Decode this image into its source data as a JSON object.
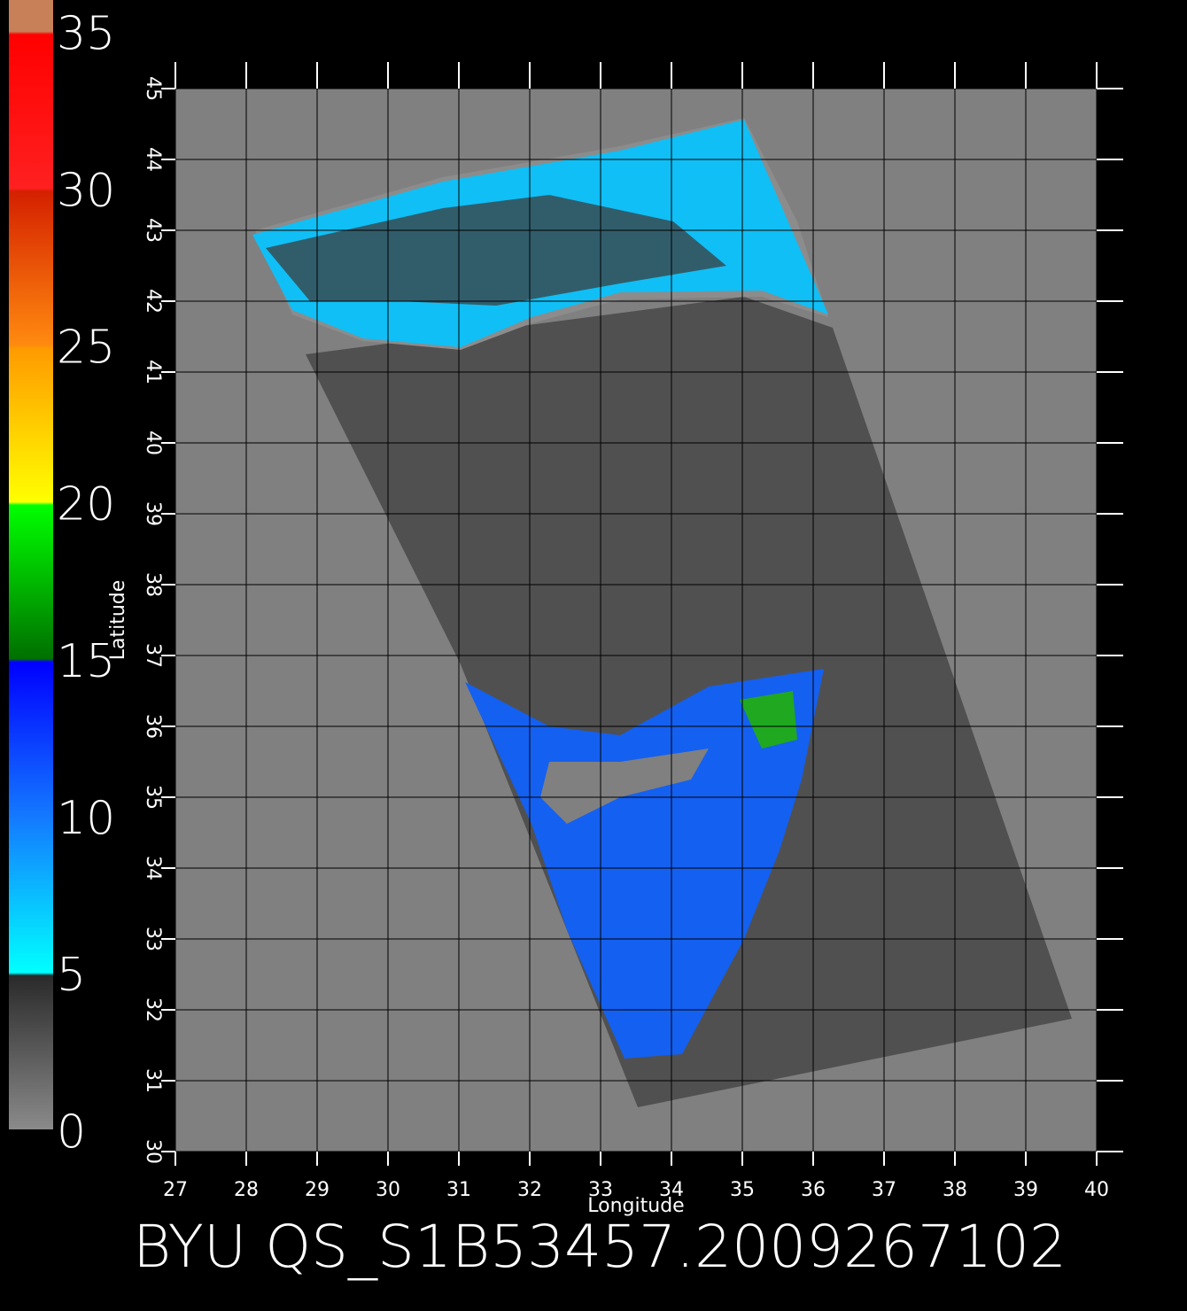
{
  "chart_data": {
    "type": "map",
    "title": "BYU  QS_S1B53457.2009267102",
    "xlabel": "Longitude",
    "ylabel": "Latitude",
    "xlim": [
      27,
      40
    ],
    "ylim": [
      30,
      45
    ],
    "xticks": [
      27,
      28,
      29,
      30,
      31,
      32,
      33,
      34,
      35,
      36,
      37,
      38,
      39,
      40
    ],
    "yticks": [
      30,
      31,
      32,
      33,
      34,
      35,
      36,
      37,
      38,
      39,
      40,
      41,
      42,
      43,
      44,
      45
    ],
    "grid": true,
    "colorbar": {
      "lim": [
        0,
        36
      ],
      "ticks": [
        0,
        5,
        10,
        15,
        20,
        25,
        30,
        35
      ],
      "stops": [
        {
          "value": 0,
          "color": "#8a8a8a"
        },
        {
          "value": 4.9,
          "color": "#2a2a2a"
        },
        {
          "value": 5,
          "color": "#00ffff"
        },
        {
          "value": 10,
          "color": "#1478ff"
        },
        {
          "value": 14.9,
          "color": "#0000ff"
        },
        {
          "value": 15,
          "color": "#007000"
        },
        {
          "value": 19.9,
          "color": "#00ff00"
        },
        {
          "value": 20,
          "color": "#ffff00"
        },
        {
          "value": 24.9,
          "color": "#ff9a00"
        },
        {
          "value": 25,
          "color": "#ff8a10"
        },
        {
          "value": 29.9,
          "color": "#d42000"
        },
        {
          "value": 30,
          "color": "#ff2020"
        },
        {
          "value": 34.9,
          "color": "#ff0000"
        },
        {
          "value": 35,
          "color": "#c88058"
        },
        {
          "value": 36,
          "color": "#c88058"
        }
      ]
    }
  }
}
